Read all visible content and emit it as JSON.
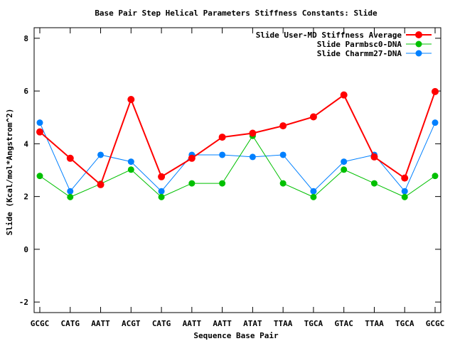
{
  "chart_data": {
    "type": "line",
    "title": "Base Pair Step Helical Parameters Stiffness Constants: Slide",
    "xlabel": "Sequence Base Pair",
    "ylabel": "Slide (Kcal/mol*Angstrom^2)",
    "ylim": [
      -2.4,
      8.4
    ],
    "yticks": [
      -2,
      0,
      2,
      4,
      6,
      8
    ],
    "grid": false,
    "legend_position": "top-right",
    "categories": [
      "GCGC",
      "CATG",
      "AATT",
      "ACGT",
      "CATG",
      "AATT",
      "AATT",
      "ATAT",
      "TTAA",
      "TGCA",
      "GTAC",
      "TTAA",
      "TGCA",
      "GCGC"
    ],
    "series": [
      {
        "name": "Slide User-MD Stiffness Average",
        "color": "#ff0000",
        "values": [
          4.45,
          3.45,
          2.45,
          5.68,
          2.75,
          3.45,
          4.25,
          4.4,
          4.68,
          5.02,
          5.85,
          3.5,
          2.7,
          5.98
        ]
      },
      {
        "name": "Slide Parmbsc0-DNA",
        "color": "#00c000",
        "values": [
          2.78,
          1.98,
          2.48,
          3.02,
          1.98,
          2.5,
          2.5,
          4.3,
          2.5,
          1.98,
          3.02,
          2.5,
          1.98,
          2.78
        ]
      },
      {
        "name": "Slide Charmm27-DNA",
        "color": "#0080ff",
        "values": [
          4.8,
          2.2,
          3.58,
          3.32,
          2.2,
          3.58,
          3.58,
          3.5,
          3.58,
          2.2,
          3.32,
          3.58,
          2.2,
          4.8
        ]
      }
    ]
  }
}
